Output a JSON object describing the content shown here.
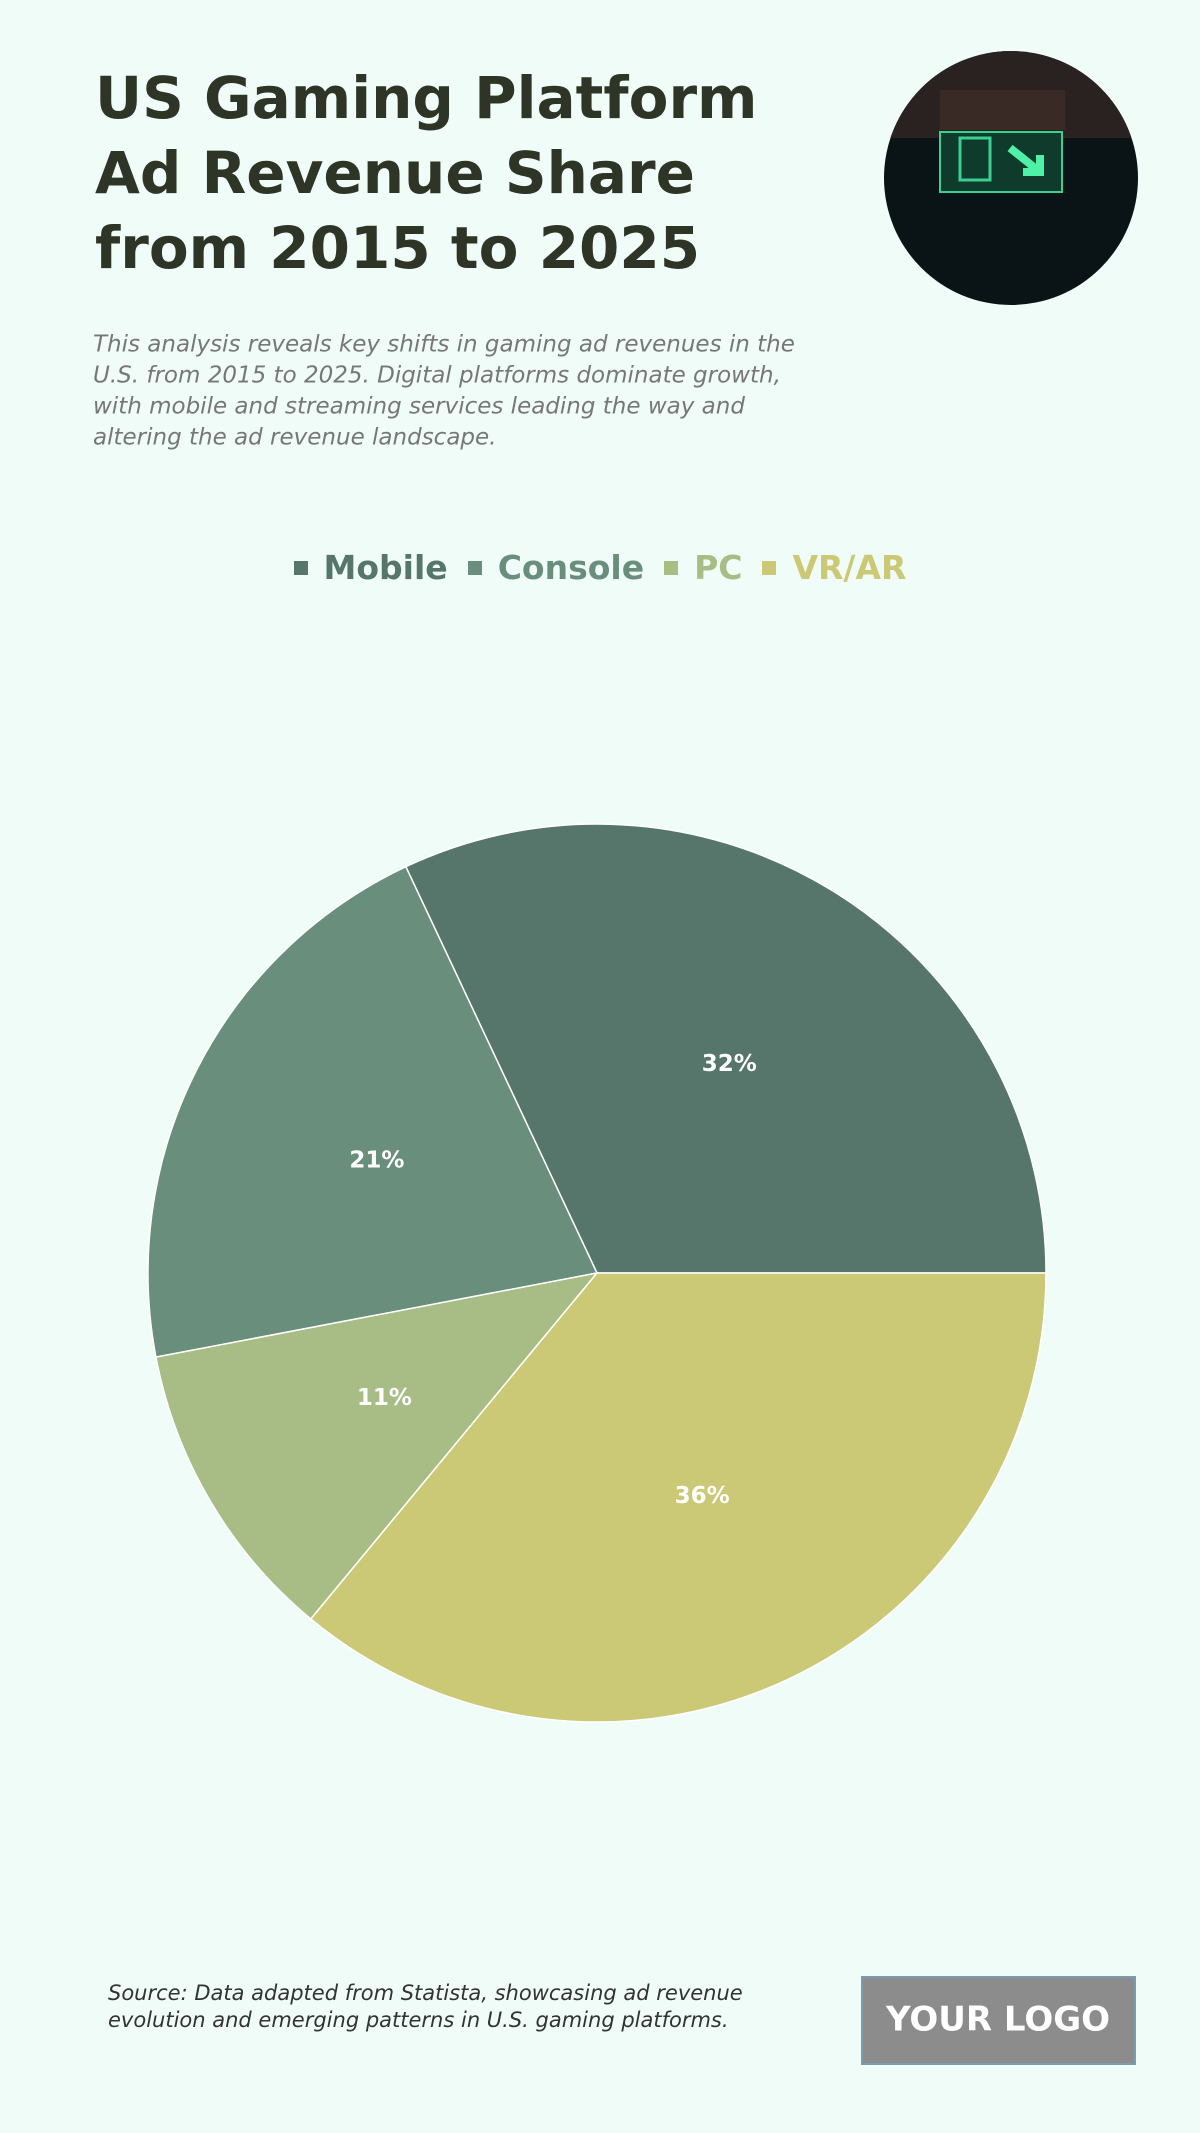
{
  "chart_data": {
    "type": "pie",
    "title": [
      "US Gaming Platform",
      "Ad Revenue Share",
      "from 2015 to 2025"
    ],
    "subtitle": [
      "This analysis reveals key shifts in gaming ad revenues in the",
      "U.S. from 2015 to 2025. Digital platforms dominate growth,",
      "with mobile and streaming services leading the way and",
      "altering the ad revenue landscape."
    ],
    "categories": [
      "Mobile",
      "Console",
      "PC",
      "VR/AR"
    ],
    "values": [
      32,
      21,
      11,
      36
    ],
    "value_labels": [
      "32%",
      "21%",
      "11%",
      "36%"
    ],
    "colors": [
      "#56756b",
      "#6a8e7c",
      "#a8bd85",
      "#cbc975"
    ],
    "legend": "top",
    "source": [
      "Source: Data adapted from Statista, showcasing ad revenue",
      "evolution and emerging patterns in U.S. gaming platforms."
    ],
    "logo": "YOUR LOGO"
  }
}
